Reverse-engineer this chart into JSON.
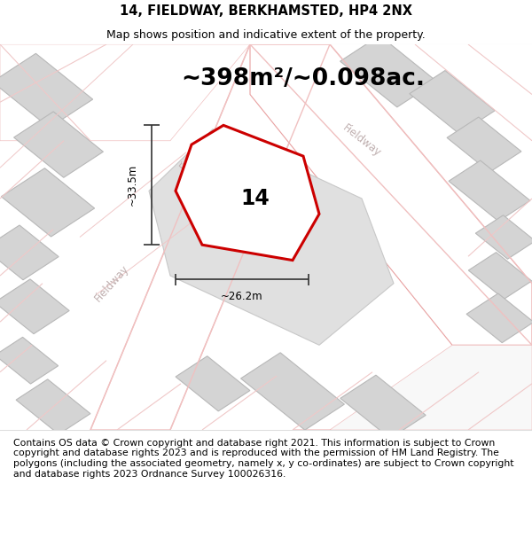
{
  "title": "14, FIELDWAY, BERKHAMSTED, HP4 2NX",
  "subtitle": "Map shows position and indicative extent of the property.",
  "area_text": "~398m²/~0.098ac.",
  "property_number": "14",
  "dim_width": "~26.2m",
  "dim_height": "~33.5m",
  "footer_text_lines": [
    "Contains OS data © Crown copyright and database right 2021. This information is subject to Crown copyright and database rights 2023 and is reproduced with the permission of",
    "HM Land Registry. The polygons (including the associated geometry, namely x, y co-ordinates) are subject to Crown copyright and database rights 2023 Ordnance Survey",
    "100026316."
  ],
  "map_bg": "#f2f2f2",
  "road_color": "#f0c0c0",
  "road_outline": "#e8a0a0",
  "building_color": "#d4d4d4",
  "building_edge": "#b8b8b8",
  "highlight_color": "#cc0000",
  "highlight_fill": "#ffffff",
  "road_label_color": "#c0b0b0",
  "dim_line_color": "#333333",
  "title_fontsize": 10.5,
  "subtitle_fontsize": 9,
  "area_fontsize": 19,
  "footer_fontsize": 7.8,
  "number_fontsize": 17,
  "road_label_fontsize": 8.5
}
